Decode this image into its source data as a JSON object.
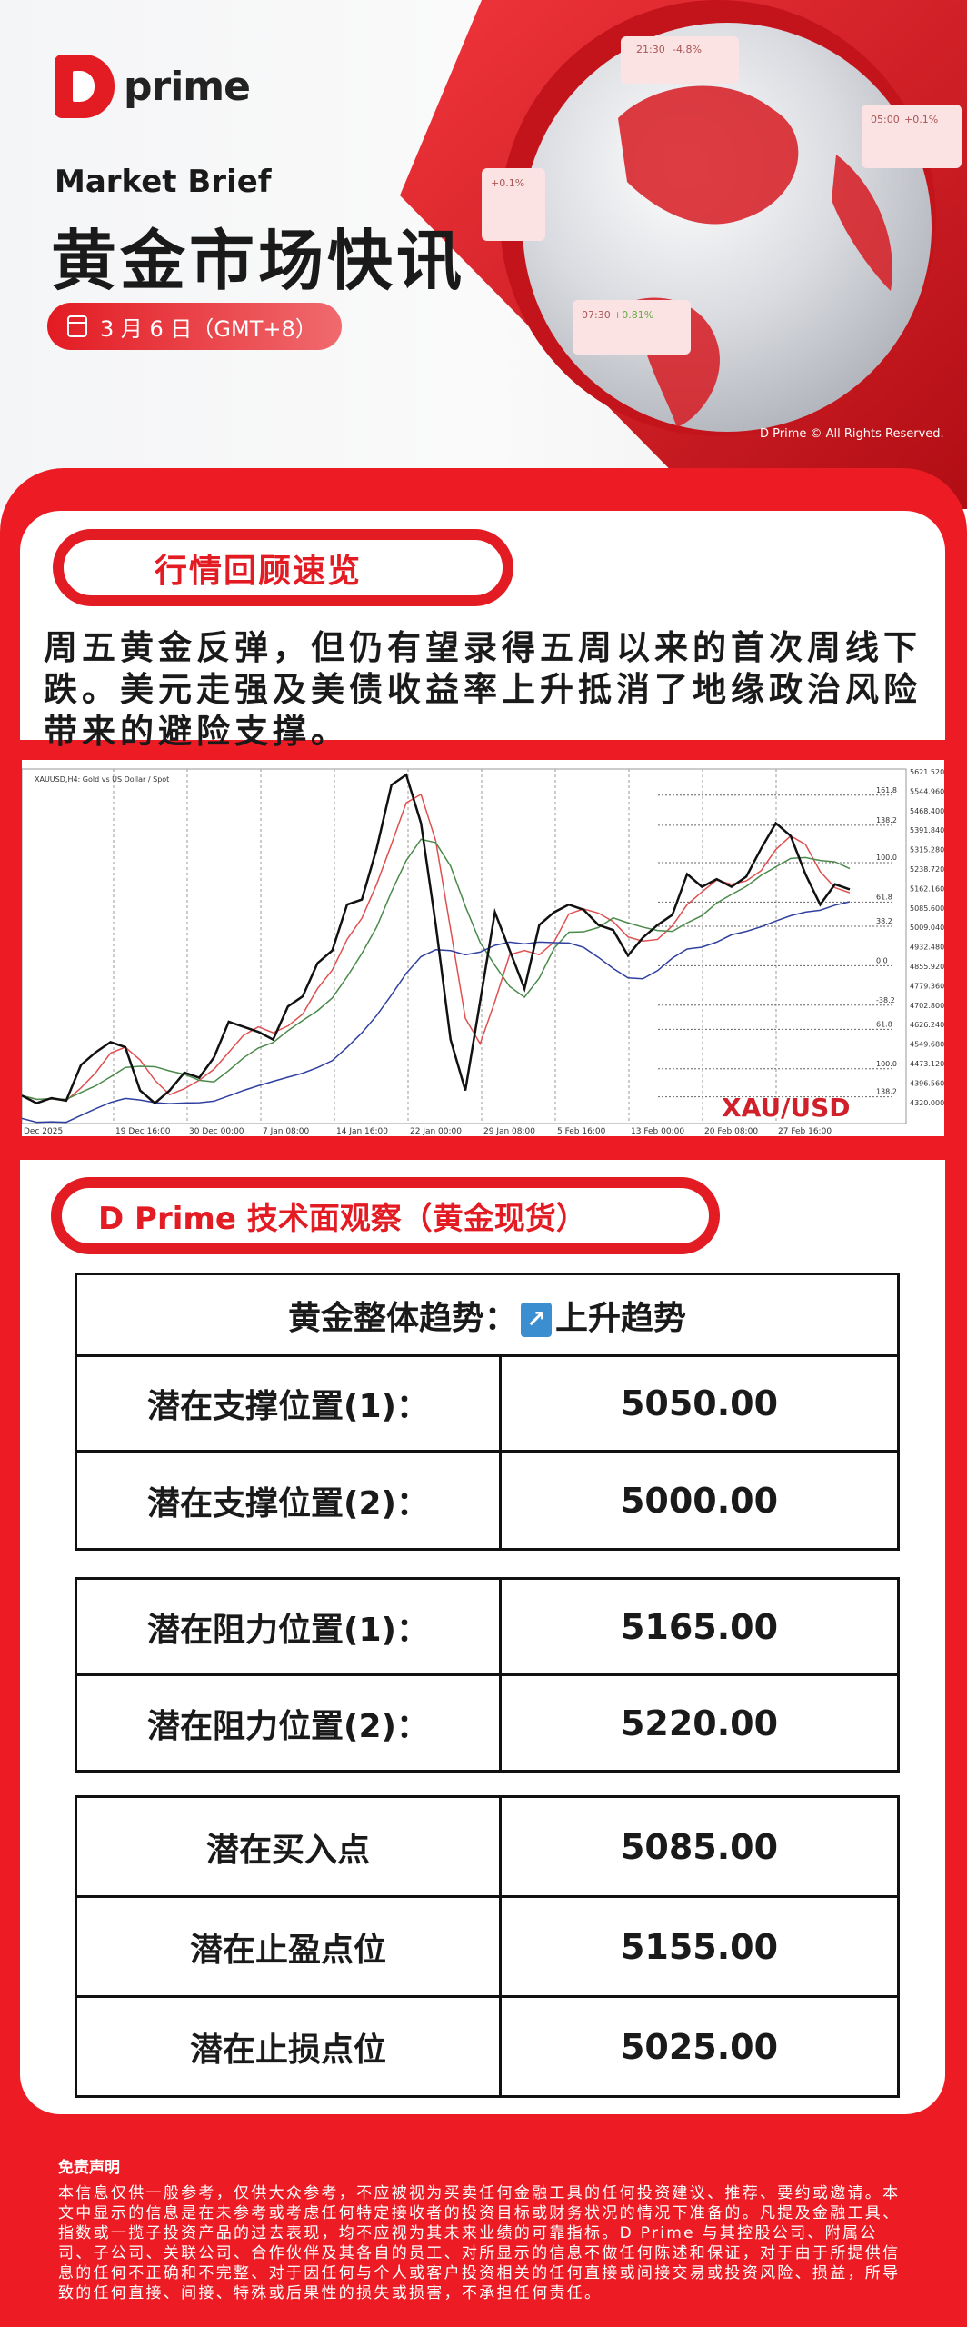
{
  "header": {
    "logo_text": "prime",
    "subtitle": "Market Brief",
    "title": "黄金市场快讯",
    "date": "3 月 6 日（GMT+8）",
    "rights": "D Prime © All Rights Reserved.",
    "cards": [
      {
        "time": "21:30",
        "change": "-4.8%"
      },
      {
        "time": "05:00",
        "change": "+0.1%"
      },
      {
        "time": "",
        "change": "+0.1%"
      },
      {
        "time": "07:30",
        "change": "+0.81%"
      }
    ]
  },
  "review": {
    "heading": "行情回顾速览",
    "text": "周五黄金反弹，但仍有望录得五周以来的首次周线下跌。美元走强及美债收益率上升抵消了地缘政治风险带来的避险支撑。"
  },
  "chart": {
    "header": "XAUUSD,H4: Gold vs US Dollar / Spot",
    "label": "XAU/USD",
    "price_ticks": [
      "5621.520",
      "5544.960",
      "5468.400",
      "5391.840",
      "5315.280",
      "5238.720",
      "5162.160",
      "5085.600",
      "5009.040",
      "4932.480",
      "4855.920",
      "4779.360",
      "4702.800",
      "4626.240",
      "4549.680",
      "4473.120",
      "4396.560",
      "4320.000"
    ],
    "fib_levels": [
      {
        "label": "161.8",
        "price": 5510
      },
      {
        "label": "138.2",
        "price": 5392
      },
      {
        "label": "100.0",
        "price": 5245
      },
      {
        "label": "61.8",
        "price": 5090
      },
      {
        "label": "38.2",
        "price": 4995
      },
      {
        "label": "0.0",
        "price": 4840
      },
      {
        "label": "-38.2",
        "price": 4685
      },
      {
        "label": "61.8",
        "price": 4590
      },
      {
        "label": "100.0",
        "price": 4435
      },
      {
        "label": "138.2",
        "price": 4325
      }
    ],
    "date_labels": [
      "Dec 2025",
      "19 Dec 16:00",
      "30 Dec 00:00",
      "7 Jan 08:00",
      "14 Jan 16:00",
      "22 Jan 00:00",
      "29 Jan 08:00",
      "5 Feb 16:00",
      "13 Feb 00:00",
      "20 Feb 08:00",
      "27 Feb 16:00"
    ],
    "prices": [
      4330,
      4300,
      4320,
      4310,
      4450,
      4500,
      4540,
      4520,
      4350,
      4300,
      4350,
      4420,
      4400,
      4480,
      4620,
      4600,
      4580,
      4550,
      4680,
      4720,
      4850,
      4900,
      5080,
      5100,
      5300,
      5550,
      5590,
      5400,
      5000,
      4550,
      4350,
      4700,
      5050,
      4900,
      4750,
      5000,
      5050,
      5080,
      5060,
      5000,
      4980,
      4880,
      4950,
      5000,
      5040,
      5200,
      5150,
      5180,
      5150,
      5190,
      5300,
      5400,
      5350,
      5200,
      5080,
      5160,
      5140
    ]
  },
  "analysis": {
    "heading": "D Prime 技术面观察（黄金现货）",
    "trend_label": "黄金整体趋势：",
    "trend_icon": "arrow-up-right-icon",
    "trend_value": "上升趋势",
    "support": [
      {
        "label": "潜在支撑位置(1)：",
        "value": "5050.00"
      },
      {
        "label": "潜在支撑位置(2)：",
        "value": "5000.00"
      }
    ],
    "resistance": [
      {
        "label": "潜在阻力位置(1)：",
        "value": "5165.00"
      },
      {
        "label": "潜在阻力位置(2)：",
        "value": "5220.00"
      }
    ],
    "trade": [
      {
        "label": "潜在买入点",
        "value": "5085.00"
      },
      {
        "label": "潜在止盈点位",
        "value": "5155.00"
      },
      {
        "label": "潜在止损点位",
        "value": "5025.00"
      }
    ]
  },
  "disclaimer": {
    "title": "免责声明",
    "text": "本信息仅供一般参考，仅供大众参考，不应被视为买卖任何金融工具的任何投资建议、推荐、要约或邀请。本文中显示的信息是在未参考或考虑任何特定接收者的投资目标或财务状况的情况下准备的。凡提及金融工具、指数或一揽子投资产品的过去表现，均不应视为其未来业绩的可靠指标。D Prime 与其控股公司、附属公司、子公司、关联公司、合作伙伴及其各自的员工、对所显示的信息不做任何陈述和保证，对于由于所提供信息的任何不正确和不完整、对于因任何与个人或客户投资相关的任何直接或间接交易或投资风险、损益，所导致的任何直接、间接、特殊或后果性的损失或损害，不承担任何责任。"
  },
  "colors": {
    "brand_red": "#ed1c24",
    "trend_icon_blue": "#3b8ed0"
  }
}
